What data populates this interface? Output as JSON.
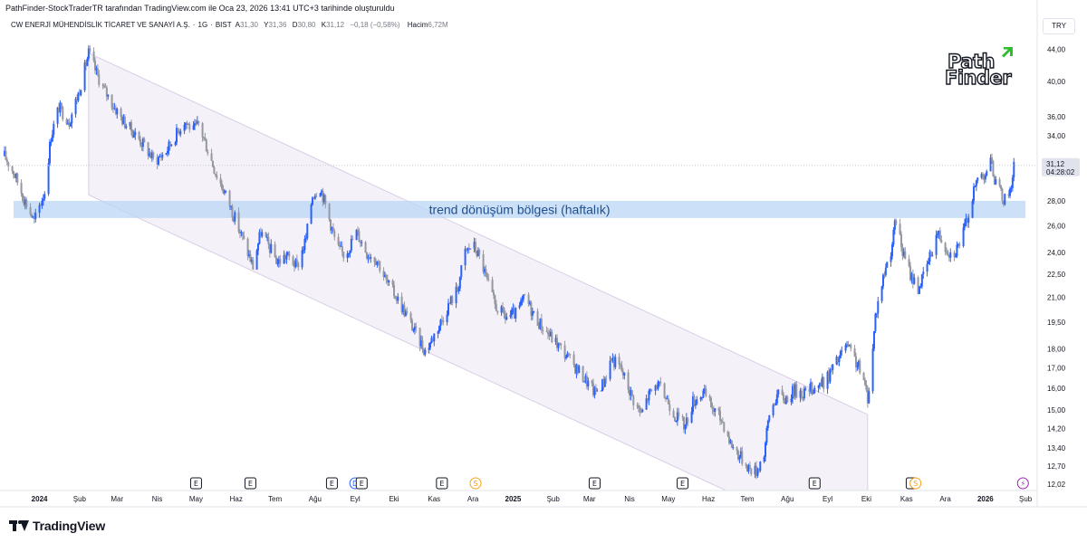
{
  "header": {
    "attribution": "PathFinder-StockTraderTR tarafından TradingView.com ile Oca 23, 2026 13:41 UTC+3 tarihinde oluşturuldu"
  },
  "symbol_bar": {
    "name": "CW ENERJİ MÜHENDİSLİK TİCARET VE SANAYİ A.Ş.",
    "interval": "1G",
    "exchange": "BIST",
    "open_label": "A",
    "open_value": "31,30",
    "high_label": "Y",
    "high_value": "31,36",
    "low_label": "D",
    "low_value": "30,80",
    "close_label": "K",
    "close_value": "31,12",
    "change": "−0,18 (−0,58%)",
    "volume_label": "Hacim",
    "volume_value": "6,72M"
  },
  "currency": "TRY",
  "branding": {
    "tradingview": "TradingView",
    "pathfinder_line1": "Path",
    "pathfinder_line2": "Finder"
  },
  "colors": {
    "up": "#2962ff",
    "down": "#9598a1",
    "channel_fill": "#f3eef8",
    "channel_line": "#d9cde6",
    "zone_fill": "#bbd6f6",
    "zone_text": "#1e4f8f",
    "axis_text": "#131722",
    "price_label_bg": "#e0e3eb",
    "pathfinder_green": "#2ebd2e"
  },
  "chart_data": {
    "type": "candlestick",
    "y_scale": "log",
    "ylim": [
      11.8,
      46
    ],
    "x_range": [
      "2023-12-05",
      "2026-02-10"
    ],
    "y_ticks": [
      "44,00",
      "40,00",
      "36,00",
      "34,00",
      "32,00",
      "30,00",
      "28,00",
      "26,00",
      "24,00",
      "22,50",
      "21,00",
      "19,50",
      "18,00",
      "17,00",
      "16,00",
      "15,00",
      "14,20",
      "13,40",
      "12,70",
      "12,02"
    ],
    "x_ticks": [
      {
        "label": "2024",
        "date": "2024-01-01",
        "bold": true
      },
      {
        "label": "Şub",
        "date": "2024-02-01"
      },
      {
        "label": "Mar",
        "date": "2024-03-01"
      },
      {
        "label": "Nis",
        "date": "2024-04-01"
      },
      {
        "label": "May",
        "date": "2024-05-01"
      },
      {
        "label": "Haz",
        "date": "2024-06-01"
      },
      {
        "label": "Tem",
        "date": "2024-07-01"
      },
      {
        "label": "Ağu",
        "date": "2024-08-01"
      },
      {
        "label": "Eyl",
        "date": "2024-09-01"
      },
      {
        "label": "Eki",
        "date": "2024-10-01"
      },
      {
        "label": "Kas",
        "date": "2024-11-01"
      },
      {
        "label": "Ara",
        "date": "2024-12-01"
      },
      {
        "label": "2025",
        "date": "2025-01-01",
        "bold": true
      },
      {
        "label": "Şub",
        "date": "2025-02-01"
      },
      {
        "label": "Mar",
        "date": "2025-03-01"
      },
      {
        "label": "Nis",
        "date": "2025-04-01"
      },
      {
        "label": "May",
        "date": "2025-05-01"
      },
      {
        "label": "Haz",
        "date": "2025-06-01"
      },
      {
        "label": "Tem",
        "date": "2025-07-01"
      },
      {
        "label": "Ağu",
        "date": "2025-08-01"
      },
      {
        "label": "Eyl",
        "date": "2025-09-01"
      },
      {
        "label": "Eki",
        "date": "2025-10-01"
      },
      {
        "label": "Kas",
        "date": "2025-11-01"
      },
      {
        "label": "Ara",
        "date": "2025-12-01"
      },
      {
        "label": "2026",
        "date": "2026-01-01",
        "bold": true
      },
      {
        "label": "Şub",
        "date": "2026-02-01"
      }
    ],
    "last_price": {
      "value": "31,12",
      "countdown": "04:28:02"
    },
    "price_path": [
      [
        "2023-12-05",
        32.0
      ],
      [
        "2023-12-12",
        30.5
      ],
      [
        "2023-12-20",
        28.2
      ],
      [
        "2023-12-28",
        26.3
      ],
      [
        "2024-01-05",
        28.8
      ],
      [
        "2024-01-10",
        34.0
      ],
      [
        "2024-01-16",
        37.0
      ],
      [
        "2024-01-24",
        35.5
      ],
      [
        "2024-01-31",
        38.5
      ],
      [
        "2024-02-05",
        41.5
      ],
      [
        "2024-02-08",
        43.5
      ],
      [
        "2024-02-14",
        41.0
      ],
      [
        "2024-02-20",
        39.0
      ],
      [
        "2024-02-28",
        37.0
      ],
      [
        "2024-03-06",
        35.5
      ],
      [
        "2024-03-14",
        34.3
      ],
      [
        "2024-03-22",
        33.0
      ],
      [
        "2024-03-30",
        31.5
      ],
      [
        "2024-04-08",
        32.5
      ],
      [
        "2024-04-15",
        34.0
      ],
      [
        "2024-04-22",
        35.6
      ],
      [
        "2024-04-29",
        34.5
      ],
      [
        "2024-05-03",
        35.2
      ],
      [
        "2024-05-09",
        33.0
      ],
      [
        "2024-05-16",
        30.5
      ],
      [
        "2024-05-24",
        28.5
      ],
      [
        "2024-06-01",
        26.3
      ],
      [
        "2024-06-08",
        24.5
      ],
      [
        "2024-06-14",
        23.0
      ],
      [
        "2024-06-20",
        25.5
      ],
      [
        "2024-06-26",
        24.5
      ],
      [
        "2024-07-03",
        23.3
      ],
      [
        "2024-07-10",
        23.8
      ],
      [
        "2024-07-18",
        23.0
      ],
      [
        "2024-07-25",
        25.0
      ],
      [
        "2024-07-30",
        28.5
      ],
      [
        "2024-08-05",
        29.2
      ],
      [
        "2024-08-12",
        26.5
      ],
      [
        "2024-08-18",
        24.3
      ],
      [
        "2024-08-24",
        23.8
      ],
      [
        "2024-09-02",
        25.5
      ],
      [
        "2024-09-10",
        24.0
      ],
      [
        "2024-09-18",
        23.5
      ],
      [
        "2024-09-25",
        22.0
      ],
      [
        "2024-10-03",
        21.0
      ],
      [
        "2024-10-10",
        20.0
      ],
      [
        "2024-10-18",
        18.8
      ],
      [
        "2024-10-25",
        17.9
      ],
      [
        "2024-10-30",
        18.5
      ],
      [
        "2024-11-06",
        19.5
      ],
      [
        "2024-11-12",
        20.5
      ],
      [
        "2024-11-19",
        21.5
      ],
      [
        "2024-11-25",
        24.0
      ],
      [
        "2024-12-01",
        24.6
      ],
      [
        "2024-12-07",
        23.5
      ],
      [
        "2024-12-12",
        22.0
      ],
      [
        "2024-12-18",
        20.5
      ],
      [
        "2024-12-26",
        19.8
      ],
      [
        "2025-01-04",
        20.0
      ],
      [
        "2025-01-10",
        21.0
      ],
      [
        "2025-01-18",
        19.8
      ],
      [
        "2025-01-26",
        19.0
      ],
      [
        "2025-02-05",
        18.2
      ],
      [
        "2025-02-15",
        17.3
      ],
      [
        "2025-02-25",
        16.5
      ],
      [
        "2025-03-05",
        15.8
      ],
      [
        "2025-03-12",
        16.3
      ],
      [
        "2025-03-18",
        17.5
      ],
      [
        "2025-03-25",
        17.0
      ],
      [
        "2025-04-03",
        15.6
      ],
      [
        "2025-04-10",
        14.8
      ],
      [
        "2025-04-15",
        15.6
      ],
      [
        "2025-04-22",
        16.2
      ],
      [
        "2025-04-30",
        15.5
      ],
      [
        "2025-05-06",
        14.8
      ],
      [
        "2025-05-14",
        14.3
      ],
      [
        "2025-05-20",
        15.4
      ],
      [
        "2025-05-28",
        15.8
      ],
      [
        "2025-06-05",
        15.0
      ],
      [
        "2025-06-12",
        14.5
      ],
      [
        "2025-06-18",
        13.6
      ],
      [
        "2025-06-25",
        13.1
      ],
      [
        "2025-07-03",
        12.6
      ],
      [
        "2025-07-08",
        12.5
      ],
      [
        "2025-07-14",
        13.2
      ],
      [
        "2025-07-18",
        14.8
      ],
      [
        "2025-07-24",
        15.7
      ],
      [
        "2025-07-30",
        15.5
      ],
      [
        "2025-08-06",
        15.9
      ],
      [
        "2025-08-14",
        15.8
      ],
      [
        "2025-08-22",
        16.1
      ],
      [
        "2025-08-30",
        16.3
      ],
      [
        "2025-09-05",
        17.0
      ],
      [
        "2025-09-10",
        17.5
      ],
      [
        "2025-09-15",
        18.2
      ],
      [
        "2025-09-20",
        17.7
      ],
      [
        "2025-09-26",
        16.9
      ],
      [
        "2025-10-02",
        15.6
      ],
      [
        "2025-10-05",
        17.0
      ],
      [
        "2025-10-08",
        19.9
      ],
      [
        "2025-10-12",
        21.5
      ],
      [
        "2025-10-16",
        23.0
      ],
      [
        "2025-10-20",
        24.2
      ],
      [
        "2025-10-24",
        26.5
      ],
      [
        "2025-10-29",
        24.0
      ],
      [
        "2025-11-04",
        22.5
      ],
      [
        "2025-11-10",
        21.6
      ],
      [
        "2025-11-15",
        22.5
      ],
      [
        "2025-11-20",
        24.0
      ],
      [
        "2025-11-25",
        25.5
      ],
      [
        "2025-12-01",
        24.5
      ],
      [
        "2025-12-06",
        23.8
      ],
      [
        "2025-12-11",
        24.5
      ],
      [
        "2025-12-16",
        25.8
      ],
      [
        "2025-12-21",
        27.8
      ],
      [
        "2025-12-26",
        30.0
      ],
      [
        "2026-01-01",
        30.5
      ],
      [
        "2026-01-05",
        31.5
      ],
      [
        "2026-01-09",
        29.5
      ],
      [
        "2026-01-13",
        28.5
      ],
      [
        "2026-01-17",
        28.0
      ],
      [
        "2026-01-20",
        29.0
      ],
      [
        "2026-01-22",
        30.2
      ],
      [
        "2026-01-23",
        31.12
      ]
    ],
    "annotations": [
      {
        "type": "parallel_channel",
        "upper": [
          [
            "2024-02-08",
            43.5
          ],
          [
            "2025-10-02",
            14.8
          ]
        ],
        "lower": [
          [
            "2024-02-08",
            28.5
          ],
          [
            "2025-10-02",
            9.7
          ]
        ]
      },
      {
        "type": "zone",
        "label": "trend dönüşüm bölgesi (haftalık)",
        "from": "2023-12-12",
        "to": "2026-02-01",
        "y_low": 26.6,
        "y_high": 28.0
      }
    ],
    "events": [
      {
        "date": "2024-05-01",
        "label": "E",
        "kind": "earnings"
      },
      {
        "date": "2024-06-12",
        "label": "E",
        "kind": "earnings"
      },
      {
        "date": "2024-08-14",
        "label": "E",
        "kind": "earnings"
      },
      {
        "date": "2024-09-01",
        "label": "D",
        "kind": "dividend"
      },
      {
        "date": "2024-09-06",
        "label": "E",
        "kind": "earnings"
      },
      {
        "date": "2024-11-07",
        "label": "E",
        "kind": "earnings"
      },
      {
        "date": "2024-12-03",
        "label": "S",
        "kind": "split"
      },
      {
        "date": "2025-03-05",
        "label": "E",
        "kind": "earnings"
      },
      {
        "date": "2025-05-12",
        "label": "E",
        "kind": "earnings"
      },
      {
        "date": "2025-08-22",
        "label": "E",
        "kind": "earnings"
      },
      {
        "date": "2025-11-05",
        "label": "E",
        "kind": "earnings"
      },
      {
        "date": "2025-11-08",
        "label": "S",
        "kind": "split"
      },
      {
        "date": "2026-01-30",
        "label": "⚡",
        "kind": "flash"
      }
    ]
  }
}
